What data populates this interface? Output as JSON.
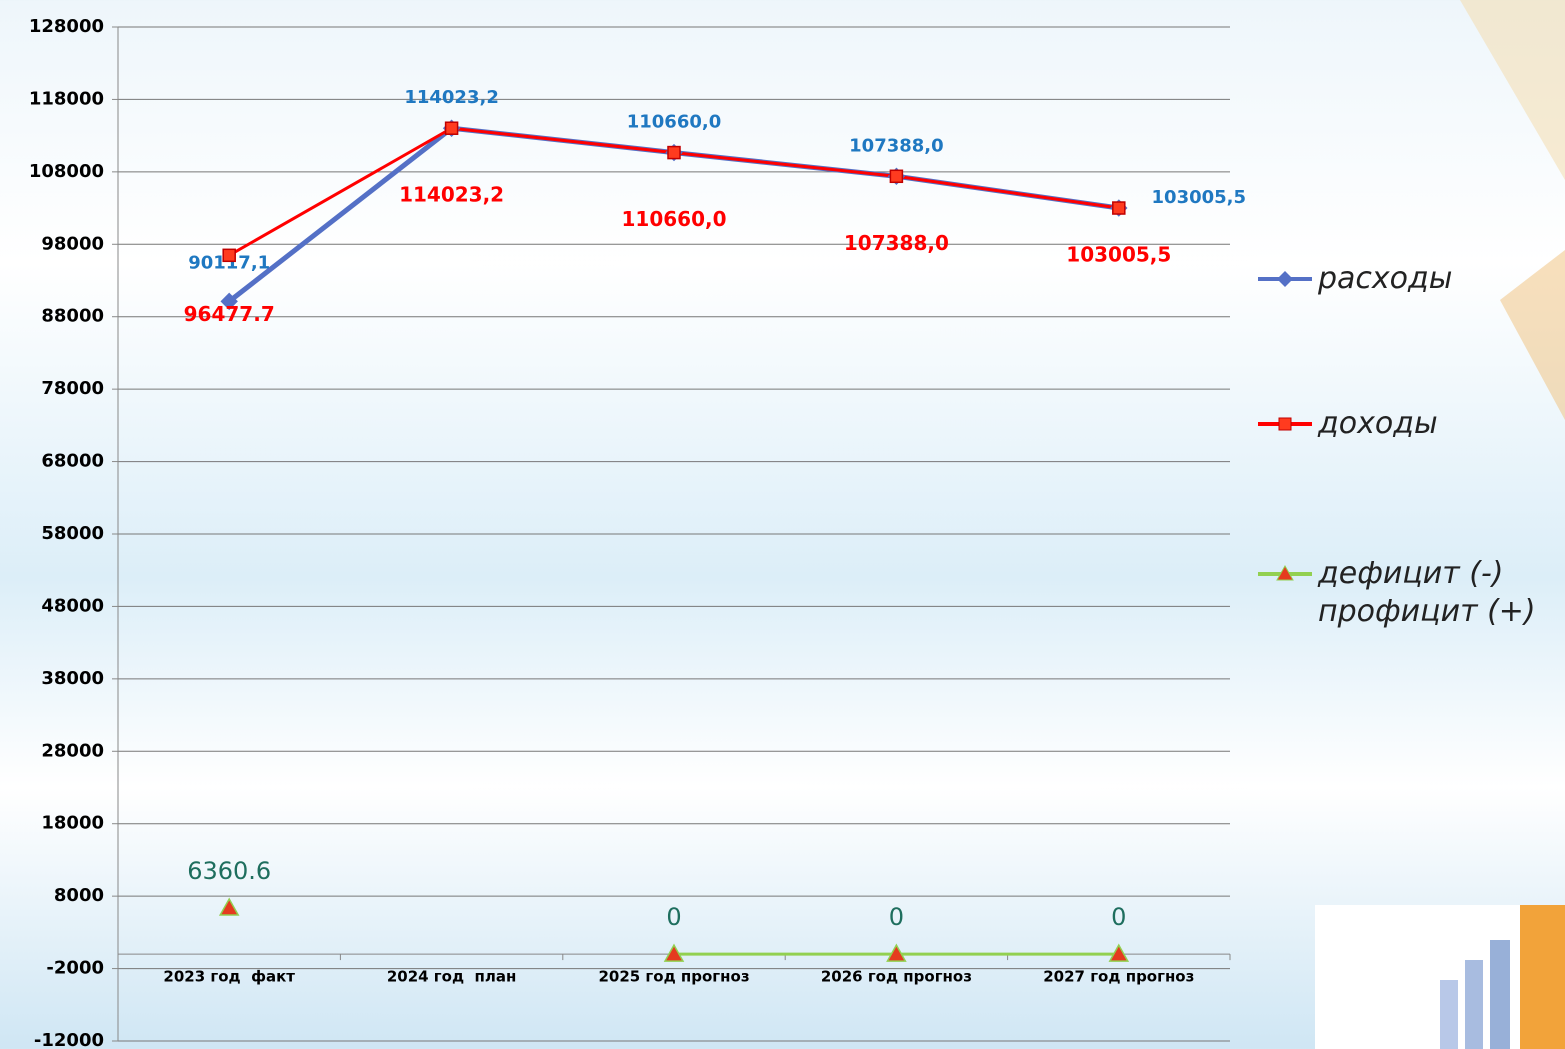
{
  "chart_data": {
    "type": "line",
    "categories": [
      "2023 год  факт",
      "2024 год  план",
      "2025 год прогноз",
      "2026 год прогноз",
      "2027 год прогноз"
    ],
    "series": [
      {
        "name": "расходы",
        "color": "#5470c6",
        "marker": "diamond",
        "label_color": "#1f78c1",
        "values": [
          90117.1,
          114023.2,
          110660.0,
          107388.0,
          103005.5
        ],
        "value_labels": [
          "90117,1",
          "114023,2",
          "110660,0",
          "107388,0",
          "103005,5"
        ]
      },
      {
        "name": "доходы",
        "color": "#ff0000",
        "marker": "square",
        "label_color": "#ff0000",
        "values": [
          96477.7,
          114023.2,
          110660.0,
          107388.0,
          103005.5
        ],
        "value_labels": [
          "96477.7",
          "114023,2",
          "110660,0",
          "107388,0",
          "103005,5"
        ]
      },
      {
        "name": "дефицит (-) профицит (+)",
        "color": "#92d050",
        "marker": "triangle",
        "label_color": "#1e6e5e",
        "values": [
          6360.6,
          null,
          0,
          0,
          0
        ]
      }
    ],
    "ylim": [
      -12000,
      128000
    ],
    "yticks": [
      -12000,
      -2000,
      8000,
      18000,
      28000,
      38000,
      48000,
      58000,
      68000,
      78000,
      88000,
      98000,
      108000,
      118000,
      128000
    ],
    "grid": true
  }
}
